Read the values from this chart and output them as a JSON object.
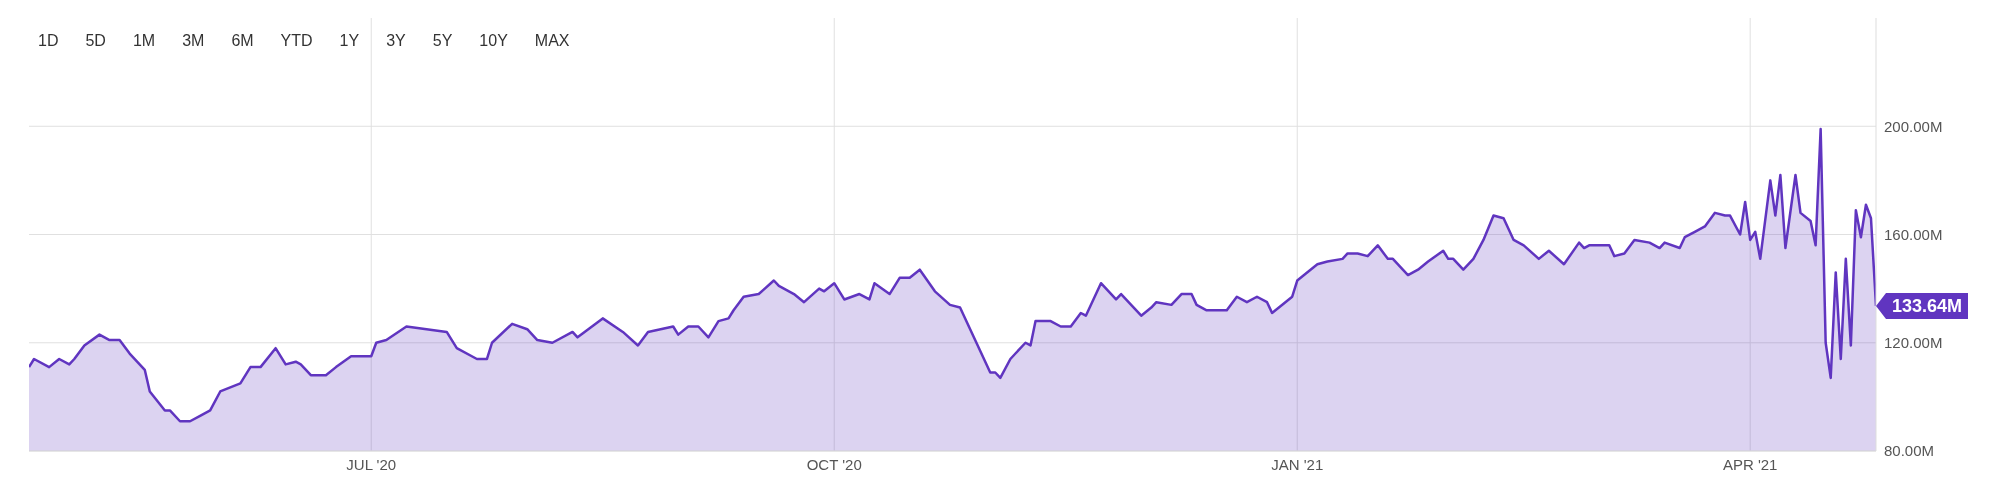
{
  "chart_data": {
    "type": "area",
    "annotations": [
      "1D",
      "5D",
      "1M",
      "3M",
      "6M",
      "YTD",
      "1Y",
      "3Y",
      "5Y",
      "10Y",
      "MAX",
      {
        "text": "133.64M",
        "x": "2021-04-26",
        "y": 133.64
      }
    ],
    "x": [
      "2020-04-24",
      "2020-04-25",
      "2020-04-28",
      "2020-04-30",
      "2020-05-02",
      "2020-05-03",
      "2020-05-05",
      "2020-05-08",
      "2020-05-10",
      "2020-05-12",
      "2020-05-14",
      "2020-05-17",
      "2020-05-18",
      "2020-05-21",
      "2020-05-22",
      "2020-05-24",
      "2020-05-26",
      "2020-05-28",
      "2020-05-30",
      "2020-06-01",
      "2020-06-05",
      "2020-06-07",
      "2020-06-09",
      "2020-06-12",
      "2020-06-14",
      "2020-06-16",
      "2020-06-17",
      "2020-06-19",
      "2020-06-22",
      "2020-06-24",
      "2020-06-27",
      "2020-07-01",
      "2020-07-02",
      "2020-07-04",
      "2020-07-08",
      "2020-07-12",
      "2020-07-16",
      "2020-07-18",
      "2020-07-22",
      "2020-07-24",
      "2020-07-25",
      "2020-07-29",
      "2020-08-01",
      "2020-08-03",
      "2020-08-06",
      "2020-08-10",
      "2020-08-11",
      "2020-08-16",
      "2020-08-20",
      "2020-08-23",
      "2020-08-25",
      "2020-08-30",
      "2020-08-31",
      "2020-09-02",
      "2020-09-04",
      "2020-09-06",
      "2020-09-08",
      "2020-09-10",
      "2020-09-11",
      "2020-09-13",
      "2020-09-16",
      "2020-09-19",
      "2020-09-20",
      "2020-09-23",
      "2020-09-25",
      "2020-09-28",
      "2020-09-29",
      "2020-10-01",
      "2020-10-03",
      "2020-10-06",
      "2020-10-08",
      "2020-10-09",
      "2020-10-12",
      "2020-10-14",
      "2020-10-16",
      "2020-10-18",
      "2020-10-21",
      "2020-10-24",
      "2020-10-26",
      "2020-10-29",
      "2020-11-01",
      "2020-11-02",
      "2020-11-03",
      "2020-11-05",
      "2020-11-08",
      "2020-11-09",
      "2020-11-10",
      "2020-11-13",
      "2020-11-15",
      "2020-11-17",
      "2020-11-19",
      "2020-11-20",
      "2020-11-23",
      "2020-11-26",
      "2020-11-27",
      "2020-12-01",
      "2020-12-03",
      "2020-12-04",
      "2020-12-07",
      "2020-12-09",
      "2020-12-11",
      "2020-12-12",
      "2020-12-14",
      "2020-12-16",
      "2020-12-18",
      "2020-12-20",
      "2020-12-22",
      "2020-12-24",
      "2020-12-26",
      "2020-12-27",
      "2020-12-31",
      "2021-01-01",
      "2021-01-05",
      "2021-01-07",
      "2021-01-10",
      "2021-01-11",
      "2021-01-13",
      "2021-01-15",
      "2021-01-17",
      "2021-01-19",
      "2021-01-20",
      "2021-01-23",
      "2021-01-25",
      "2021-01-27",
      "2021-01-30",
      "2021-01-31",
      "2021-02-01",
      "2021-02-03",
      "2021-02-05",
      "2021-02-07",
      "2021-02-09",
      "2021-02-11",
      "2021-02-13",
      "2021-02-15",
      "2021-02-18",
      "2021-02-20",
      "2021-02-23",
      "2021-02-26",
      "2021-02-27",
      "2021-02-28",
      "2021-03-04",
      "2021-03-05",
      "2021-03-07",
      "2021-03-09",
      "2021-03-12",
      "2021-03-14",
      "2021-03-15",
      "2021-03-18",
      "2021-03-19",
      "2021-03-21",
      "2021-03-23",
      "2021-03-25",
      "2021-03-27",
      "2021-03-28",
      "2021-03-30",
      "2021-03-31",
      "2021-04-01",
      "2021-04-02",
      "2021-04-03",
      "2021-04-05",
      "2021-04-06",
      "2021-04-07",
      "2021-04-08",
      "2021-04-10",
      "2021-04-11",
      "2021-04-13",
      "2021-04-14",
      "2021-04-15",
      "2021-04-16",
      "2021-04-17",
      "2021-04-18",
      "2021-04-19",
      "2021-04-20",
      "2021-04-21",
      "2021-04-22",
      "2021-04-23",
      "2021-04-24",
      "2021-04-25",
      "2021-04-26"
    ],
    "series": [
      {
        "color": "#6035c0",
        "values": [
          111,
          114,
          111,
          114,
          112,
          114,
          119,
          123,
          121,
          121,
          116,
          110,
          102,
          95,
          95,
          91,
          91,
          93,
          95,
          102,
          105,
          111,
          111,
          118,
          112,
          113,
          112,
          108,
          108,
          111,
          115,
          115,
          120,
          121,
          126,
          125,
          124,
          118,
          114,
          114,
          120,
          127,
          125,
          121,
          120,
          124,
          122,
          129,
          124,
          119,
          124,
          126,
          123,
          126,
          126,
          122,
          128,
          129,
          132,
          137,
          138,
          143,
          141,
          138,
          135,
          140,
          139,
          142,
          136,
          138,
          136,
          142,
          138,
          144,
          144,
          147,
          139,
          134,
          133,
          121,
          109,
          109,
          107,
          114,
          120,
          119,
          128,
          128,
          126,
          126,
          131,
          130,
          142,
          136,
          138,
          130,
          133,
          135,
          134,
          138,
          138,
          134,
          132,
          132,
          132,
          137,
          135,
          137,
          135,
          131,
          137,
          143,
          149,
          150,
          151,
          153,
          153,
          152,
          156,
          151,
          151,
          145,
          147,
          150,
          154,
          151,
          151,
          147,
          151,
          158,
          167,
          166,
          158,
          156,
          151,
          154,
          149,
          157,
          155,
          156,
          156,
          152,
          153,
          158,
          157,
          155,
          157,
          155,
          159,
          161,
          163,
          168,
          167,
          167,
          160,
          172,
          158,
          161,
          151,
          180,
          167,
          182,
          155,
          182,
          168,
          165,
          156,
          199,
          120,
          107,
          146,
          114,
          151,
          119,
          169,
          159,
          171,
          166,
          133.64
        ]
      }
    ],
    "xlim": [
      "2020-04-24",
      "2021-04-26"
    ],
    "xticks": [
      {
        "value": "2020-07-01",
        "label": "JUL '20"
      },
      {
        "value": "2020-10-01",
        "label": "OCT '20"
      },
      {
        "value": "2021-01-01",
        "label": "JAN '21"
      },
      {
        "value": "2021-04-01",
        "label": "APR '21"
      }
    ],
    "ylim": [
      80,
      240
    ],
    "yticks": [
      {
        "value": 80,
        "label": "80.00M"
      },
      {
        "value": 120,
        "label": "120.00M"
      },
      {
        "value": 160,
        "label": "160.00M"
      },
      {
        "value": 200,
        "label": "200.00M"
      }
    ],
    "grid": true
  }
}
